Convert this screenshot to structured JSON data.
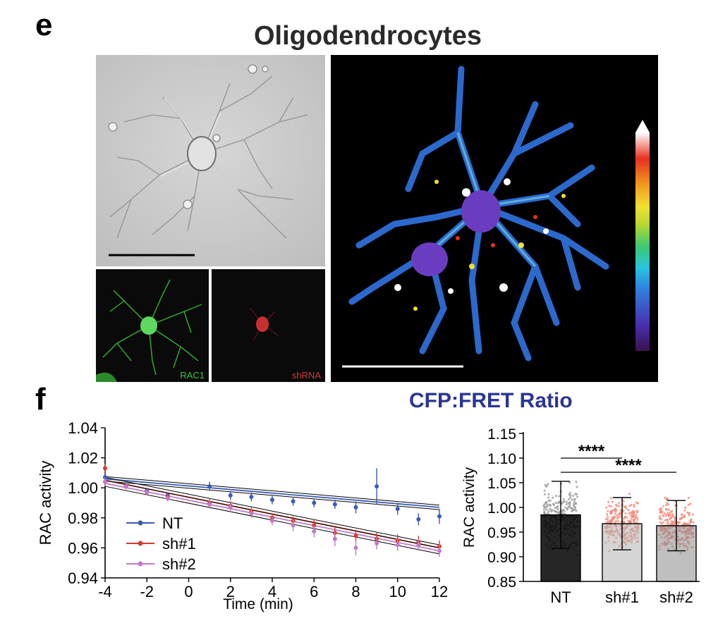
{
  "panel_e": {
    "letter": "e",
    "title": "Oligodendrocytes",
    "dic_image": {
      "desc": "DIC micrograph of oligodendrocyte with scale bar"
    },
    "rac1_label": "RAC1",
    "shrna_label": "shRNA",
    "fret_image": {
      "desc": "CFP:FRET ratio pseudocolor image with colorbar"
    },
    "colorbar_colors": [
      "#3a1050",
      "#4a2fb0",
      "#2f7fe0",
      "#28c4e0",
      "#3ec870",
      "#b8d830",
      "#f2e030",
      "#f29a20",
      "#e83020",
      "#ffffff"
    ]
  },
  "panel_f": {
    "letter": "f",
    "fret_title": "CFP:FRET Ratio"
  },
  "chart_data": [
    {
      "type": "line",
      "xlabel": "Time (min)",
      "ylabel": "RAC  activity",
      "xlim": [
        -4,
        12
      ],
      "ylim": [
        0.94,
        1.04
      ],
      "xticks": [
        -4,
        -2,
        0,
        2,
        4,
        6,
        8,
        10,
        12
      ],
      "yticks": [
        "0.94",
        "0.96",
        "0.98",
        "1.00",
        "1.02",
        "1.04"
      ],
      "legend_position": "bottom-left",
      "series": [
        {
          "name": "NT",
          "color": "#3a5ab4",
          "x": [
            -4,
            -3,
            -2,
            -1,
            1,
            2,
            3,
            4,
            5,
            6,
            7,
            8,
            9,
            10,
            11,
            12
          ],
          "y": [
            1.007,
            1.001,
            0.998,
            0.995,
            1.001,
            0.995,
            0.994,
            0.992,
            0.991,
            0.99,
            0.989,
            0.987,
            1.001,
            0.986,
            0.979,
            0.981
          ],
          "err": [
            0.003,
            0.002,
            0.002,
            0.002,
            0.003,
            0.003,
            0.003,
            0.003,
            0.003,
            0.003,
            0.003,
            0.004,
            0.012,
            0.004,
            0.004,
            0.005
          ],
          "fit": [
            1.006,
            0.987
          ],
          "ci": 0.0015
        },
        {
          "name": "sh#1",
          "color": "#d63a2e",
          "x": [
            -4,
            -3,
            -2,
            -1,
            1,
            2,
            3,
            4,
            5,
            6,
            7,
            8,
            9,
            10,
            11,
            12
          ],
          "y": [
            1.013,
            1.001,
            0.997,
            0.994,
            0.99,
            0.988,
            0.984,
            0.98,
            0.978,
            0.975,
            0.97,
            0.968,
            0.966,
            0.965,
            0.964,
            0.961
          ],
          "err": [
            0.003,
            0.002,
            0.002,
            0.002,
            0.003,
            0.003,
            0.003,
            0.003,
            0.003,
            0.004,
            0.004,
            0.004,
            0.004,
            0.004,
            0.004,
            0.004
          ],
          "fit": [
            1.005,
            0.96
          ],
          "ci": 0.002
        },
        {
          "name": "sh#2",
          "color": "#c27ac6",
          "x": [
            -4,
            -3,
            -2,
            -1,
            1,
            2,
            3,
            4,
            5,
            6,
            7,
            8,
            9,
            10,
            11,
            12
          ],
          "y": [
            1.004,
            1.001,
            0.997,
            0.993,
            0.989,
            0.987,
            0.983,
            0.978,
            0.975,
            0.971,
            0.966,
            0.96,
            0.963,
            0.962,
            0.962,
            0.958
          ],
          "err": [
            0.003,
            0.002,
            0.002,
            0.002,
            0.003,
            0.003,
            0.003,
            0.003,
            0.004,
            0.004,
            0.005,
            0.005,
            0.004,
            0.004,
            0.004,
            0.004
          ],
          "fit": [
            1.003,
            0.958
          ],
          "ci": 0.002
        }
      ]
    },
    {
      "type": "bar",
      "ylabel": "RAC  activity",
      "categories": [
        "NT",
        "sh#1",
        "sh#2"
      ],
      "values": [
        0.985,
        0.967,
        0.963
      ],
      "sd": [
        0.068,
        0.053,
        0.051
      ],
      "bar_colors": [
        "#000000",
        "#b2b2b2",
        "#8a8a8a"
      ],
      "dot_colors": [
        "#9a9a9a",
        "#f08878",
        "#f08878"
      ],
      "ylim": [
        0.85,
        1.15
      ],
      "yticks": [
        "0.85",
        "0.90",
        "0.95",
        "1.00",
        "1.05",
        "1.10",
        "1.15"
      ],
      "significance": [
        {
          "from": "NT",
          "to": "sh#1",
          "label": "****"
        },
        {
          "from": "NT",
          "to": "sh#2",
          "label": "****"
        }
      ]
    }
  ]
}
